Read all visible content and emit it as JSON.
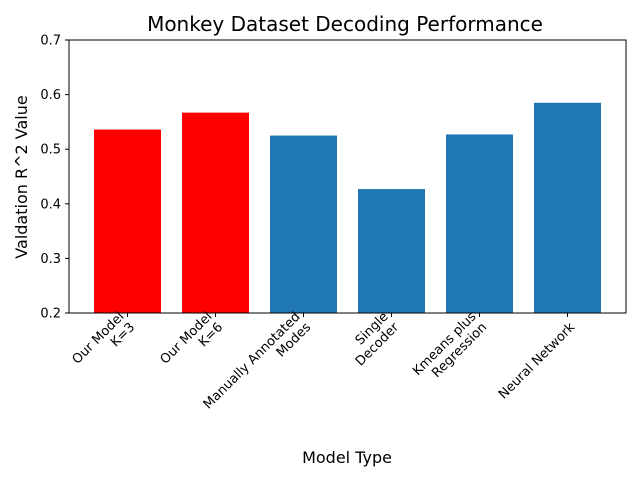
{
  "chart_data": {
    "type": "bar",
    "title": "Monkey Dataset Decoding Performance",
    "xlabel": "Model Type",
    "ylabel": "Valdation R^2 Value",
    "ylim": [
      0.2,
      0.7
    ],
    "yticks": [
      "0.2",
      "0.3",
      "0.4",
      "0.5",
      "0.6",
      "0.7"
    ],
    "categories": [
      [
        "Our Model",
        "K=3"
      ],
      [
        "Our Model",
        "K=6"
      ],
      [
        "Manually Annotated",
        "Modes"
      ],
      [
        "Single",
        "Decoder"
      ],
      [
        "Kmeans plus",
        "Regression"
      ],
      [
        "Neural Network"
      ]
    ],
    "values": [
      0.536,
      0.567,
      0.525,
      0.427,
      0.527,
      0.585
    ],
    "bar_colors": [
      "#ff0000",
      "#ff0000",
      "#1f77b4",
      "#1f77b4",
      "#1f77b4",
      "#1f77b4"
    ],
    "grid": false,
    "legend": "none"
  }
}
